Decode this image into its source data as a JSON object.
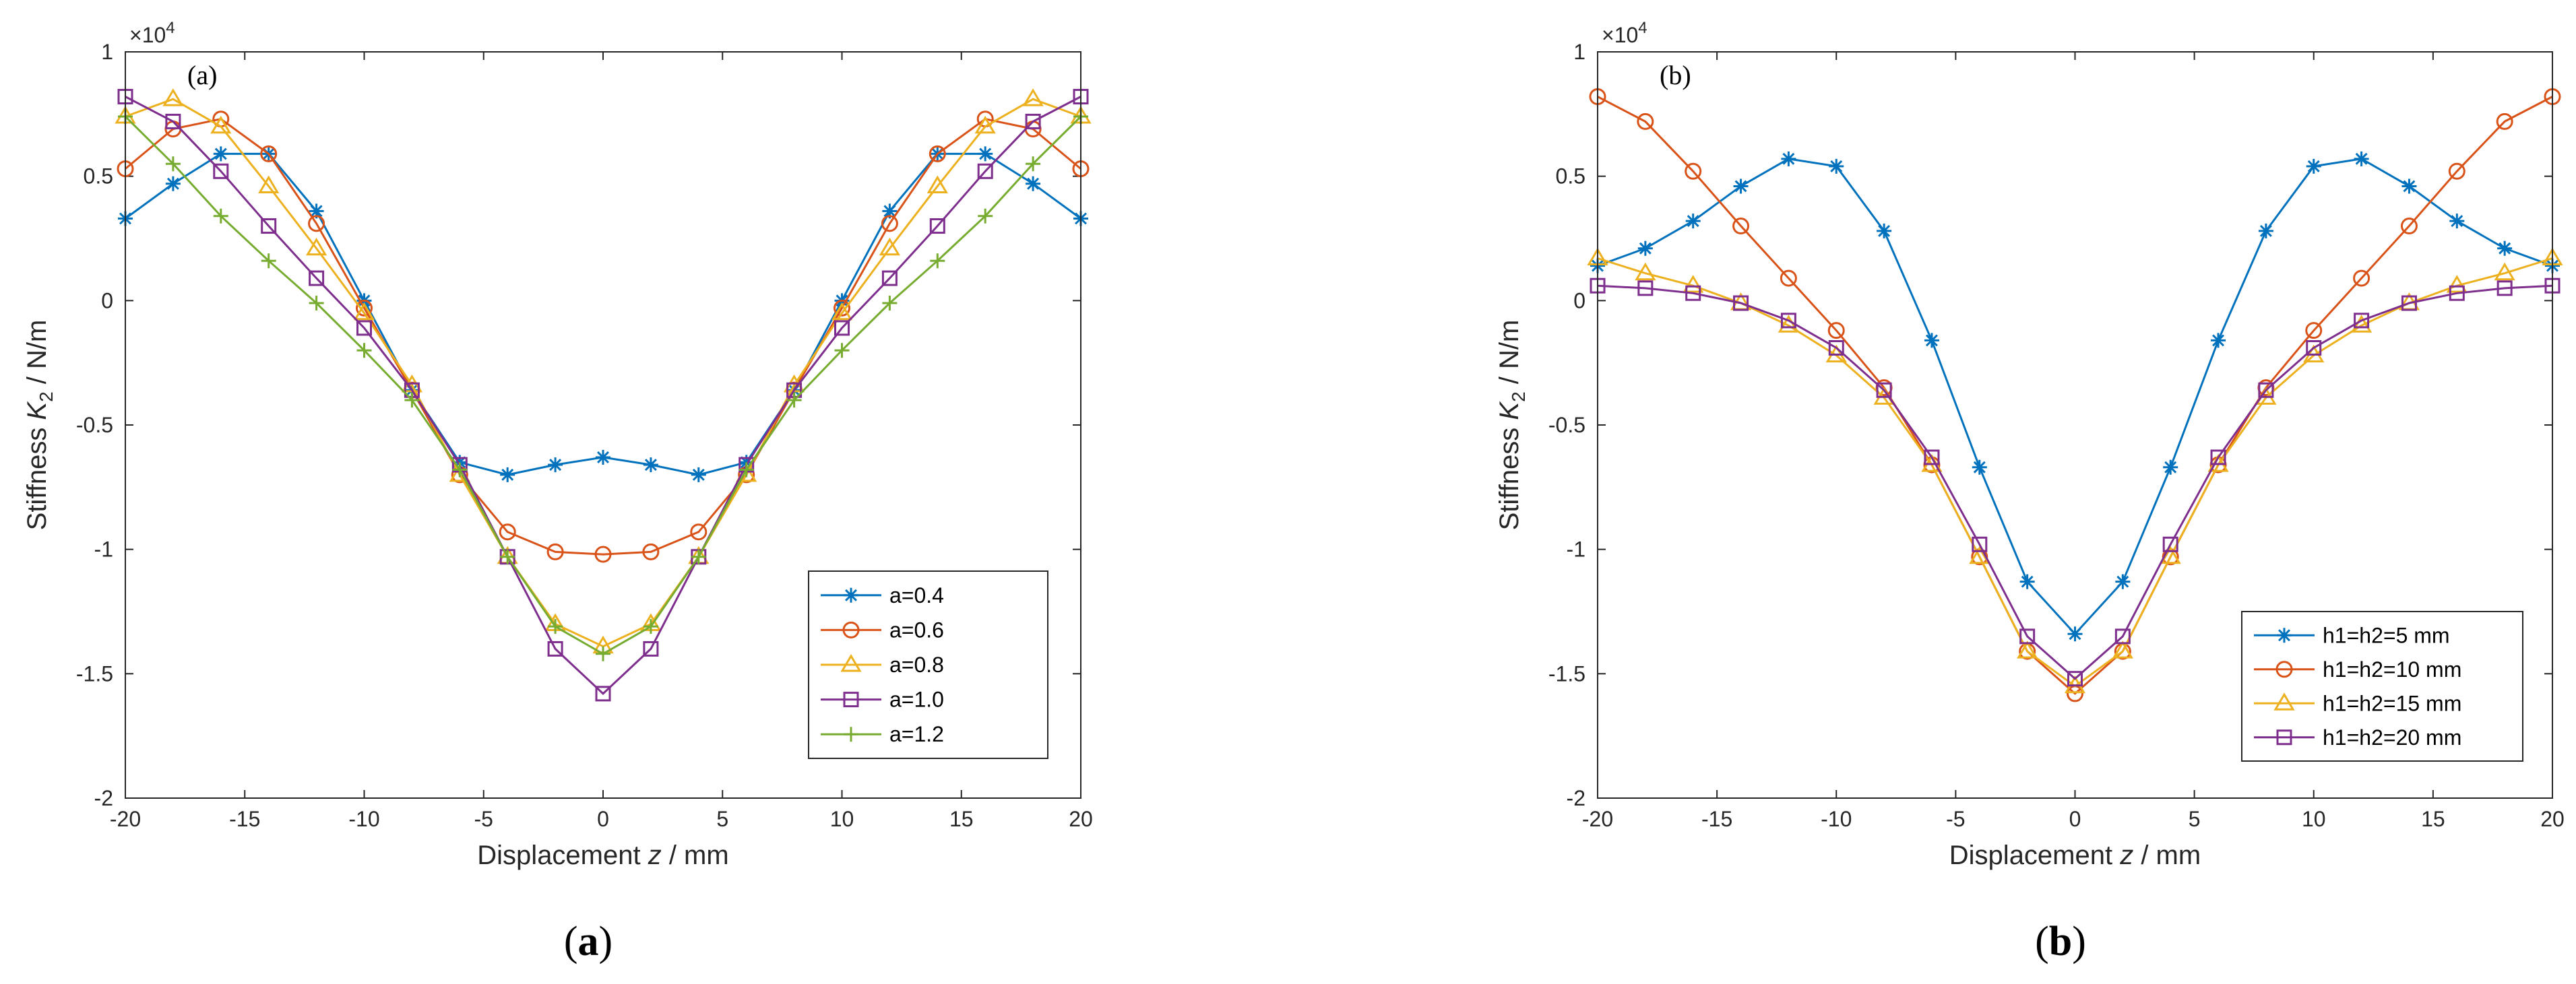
{
  "chart_data": [
    {
      "id": "a",
      "type": "line",
      "panel_label": "(a)",
      "caption_open": "(",
      "caption_letter": "a",
      "caption_close": ")",
      "xlabel_prefix": "Displacement ",
      "xlabel_var": "z",
      "xlabel_unit": " / mm",
      "ylabel_prefix": "Stiffness ",
      "ylabel_var": "K",
      "ylabel_sub": "2",
      "ylabel_unit": " / N/m",
      "exponent_base": "×10",
      "exponent_power": "4",
      "xlim": [
        -20,
        20
      ],
      "ylim": [
        -2,
        1
      ],
      "xticks": [
        -20,
        -15,
        -10,
        -5,
        0,
        5,
        10,
        15,
        20
      ],
      "xtick_labels": [
        "-20",
        "-15",
        "-10",
        "-5",
        "0",
        "5",
        "10",
        "15",
        "20"
      ],
      "yticks": [
        -2,
        -1.5,
        -1,
        -0.5,
        0,
        0.5,
        1
      ],
      "ytick_labels": [
        "-2",
        "-1.5",
        "-1",
        "-0.5",
        "0",
        "0.5",
        "1"
      ],
      "legend_position": "bottom-right",
      "x": [
        -20,
        -18,
        -16,
        -14,
        -12,
        -10,
        -8,
        -6,
        -4,
        -2,
        0,
        2,
        4,
        6,
        8,
        10,
        12,
        14,
        16,
        18,
        20
      ],
      "series": [
        {
          "name": "a=0.4",
          "color": "#0072BD",
          "marker": "star",
          "values": [
            0.33,
            0.47,
            0.59,
            0.59,
            0.36,
            0.0,
            -0.36,
            -0.65,
            -0.7,
            -0.66,
            -0.63,
            -0.66,
            -0.7,
            -0.65,
            -0.36,
            0.0,
            0.36,
            0.59,
            0.59,
            0.47,
            0.33
          ]
        },
        {
          "name": "a=0.6",
          "color": "#D95319",
          "marker": "circle",
          "values": [
            0.53,
            0.69,
            0.73,
            0.59,
            0.31,
            -0.03,
            -0.36,
            -0.7,
            -0.93,
            -1.01,
            -1.02,
            -1.01,
            -0.93,
            -0.7,
            -0.36,
            -0.03,
            0.31,
            0.59,
            0.73,
            0.69,
            0.53
          ]
        },
        {
          "name": "a=0.8",
          "color": "#EDB120",
          "marker": "triangle",
          "values": [
            0.74,
            0.81,
            0.7,
            0.46,
            0.21,
            -0.05,
            -0.34,
            -0.7,
            -1.03,
            -1.3,
            -1.39,
            -1.3,
            -1.03,
            -0.7,
            -0.34,
            -0.05,
            0.21,
            0.46,
            0.7,
            0.81,
            0.74
          ]
        },
        {
          "name": "a=1.0",
          "color": "#7E2F8E",
          "marker": "square",
          "values": [
            0.82,
            0.72,
            0.52,
            0.3,
            0.09,
            -0.11,
            -0.36,
            -0.66,
            -1.03,
            -1.4,
            -1.58,
            -1.4,
            -1.03,
            -0.66,
            -0.36,
            -0.11,
            0.09,
            0.3,
            0.52,
            0.72,
            0.82
          ]
        },
        {
          "name": "a=1.2",
          "color": "#77AC30",
          "marker": "plus",
          "values": [
            0.74,
            0.55,
            0.34,
            0.16,
            -0.01,
            -0.2,
            -0.4,
            -0.68,
            -1.03,
            -1.31,
            -1.42,
            -1.31,
            -1.03,
            -0.68,
            -0.4,
            -0.2,
            -0.01,
            0.16,
            0.34,
            0.55,
            0.74
          ]
        }
      ]
    },
    {
      "id": "b",
      "type": "line",
      "panel_label": "(b)",
      "caption_open": "(",
      "caption_letter": "b",
      "caption_close": ")",
      "xlabel_prefix": "Displacement ",
      "xlabel_var": "z",
      "xlabel_unit": " / mm",
      "ylabel_prefix": "Stiffness ",
      "ylabel_var": "K",
      "ylabel_sub": "2",
      "ylabel_unit": " / N/m",
      "exponent_base": "×10",
      "exponent_power": "4",
      "xlim": [
        -20,
        20
      ],
      "ylim": [
        -2,
        1
      ],
      "xticks": [
        -20,
        -15,
        -10,
        -5,
        0,
        5,
        10,
        15,
        20
      ],
      "xtick_labels": [
        "-20",
        "-15",
        "-10",
        "-5",
        "0",
        "5",
        "10",
        "15",
        "20"
      ],
      "yticks": [
        -2,
        -1.5,
        -1,
        -0.5,
        0,
        0.5,
        1
      ],
      "ytick_labels": [
        "-2",
        "-1.5",
        "-1",
        "-0.5",
        "0",
        "0.5",
        "1"
      ],
      "legend_position": "bottom-right",
      "x": [
        -20,
        -18,
        -16,
        -14,
        -12,
        -10,
        -8,
        -6,
        -4,
        -2,
        0,
        2,
        4,
        6,
        8,
        10,
        12,
        14,
        16,
        18,
        20
      ],
      "series": [
        {
          "name": "h1=h2=5 mm",
          "color": "#0072BD",
          "marker": "star",
          "values": [
            0.14,
            0.21,
            0.32,
            0.46,
            0.57,
            0.54,
            0.28,
            -0.16,
            -0.67,
            -1.13,
            -1.34,
            -1.13,
            -0.67,
            -0.16,
            0.28,
            0.54,
            0.57,
            0.46,
            0.32,
            0.21,
            0.14
          ]
        },
        {
          "name": "h1=h2=10 mm",
          "color": "#D95319",
          "marker": "circle",
          "values": [
            0.82,
            0.72,
            0.52,
            0.3,
            0.09,
            -0.12,
            -0.35,
            -0.66,
            -1.03,
            -1.41,
            -1.58,
            -1.41,
            -1.03,
            -0.66,
            -0.35,
            -0.12,
            0.09,
            0.3,
            0.52,
            0.72,
            0.82
          ]
        },
        {
          "name": "h1=h2=15 mm",
          "color": "#EDB120",
          "marker": "triangle",
          "values": [
            0.17,
            0.11,
            0.06,
            -0.01,
            -0.1,
            -0.22,
            -0.39,
            -0.66,
            -1.03,
            -1.41,
            -1.55,
            -1.41,
            -1.03,
            -0.66,
            -0.39,
            -0.22,
            -0.1,
            -0.01,
            0.06,
            0.11,
            0.17
          ]
        },
        {
          "name": "h1=h2=20 mm",
          "color": "#7E2F8E",
          "marker": "square",
          "values": [
            0.06,
            0.05,
            0.03,
            -0.01,
            -0.08,
            -0.19,
            -0.36,
            -0.63,
            -0.98,
            -1.35,
            -1.52,
            -1.35,
            -0.98,
            -0.63,
            -0.36,
            -0.19,
            -0.08,
            -0.01,
            0.03,
            0.05,
            0.06
          ]
        }
      ]
    }
  ]
}
